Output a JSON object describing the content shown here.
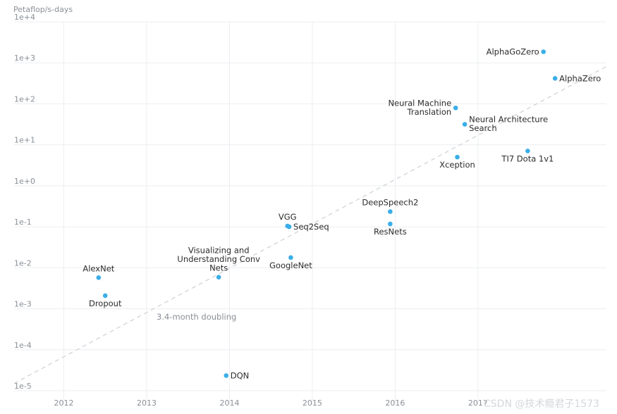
{
  "chart_data": {
    "type": "scatter",
    "ylabel": "Petaflop/s-days",
    "yscale": "log",
    "ylim_exp": [
      -5,
      4
    ],
    "xlim": [
      2011.4,
      2018.55
    ],
    "grid": true,
    "y_tick_labels": [
      "1e-5",
      "1e-4",
      "1e-3",
      "1e-2",
      "1e-1",
      "1e+0",
      "1e+1",
      "1e+2",
      "1e+3",
      "1e+4"
    ],
    "x_ticks": [
      2012,
      2013,
      2014,
      2015,
      2016,
      2017
    ],
    "x_tick_labels": [
      "2012",
      "2013",
      "2014",
      "2015",
      "2016",
      "2017"
    ],
    "points": [
      {
        "name": "AlexNet",
        "x": 2012.42,
        "log10y": -2.24,
        "label_lines": [
          "AlexNet"
        ],
        "label_pos": "above"
      },
      {
        "name": "Dropout",
        "x": 2012.5,
        "log10y": -2.68,
        "label_lines": [
          "Dropout"
        ],
        "label_pos": "below"
      },
      {
        "name": "DQN",
        "x": 2013.96,
        "log10y": -4.63,
        "label_lines": [
          "DQN"
        ],
        "label_pos": "right"
      },
      {
        "name": "Visualizing and Understanding Conv Nets",
        "x": 2013.87,
        "log10y": -2.23,
        "label_lines": [
          "Visualizing and",
          "Understanding Conv",
          "Nets"
        ],
        "label_pos": "above"
      },
      {
        "name": "VGG",
        "x": 2014.7,
        "log10y": -0.98,
        "label_lines": [
          "VGG"
        ],
        "label_pos": "above"
      },
      {
        "name": "Seq2Seq",
        "x": 2014.72,
        "log10y": -1.0,
        "label_lines": [
          "Seq2Seq"
        ],
        "label_pos": "right"
      },
      {
        "name": "GoogleNet",
        "x": 2014.74,
        "log10y": -1.75,
        "label_lines": [
          "GoogleNet"
        ],
        "label_pos": "below"
      },
      {
        "name": "DeepSpeech2",
        "x": 2015.94,
        "log10y": -0.63,
        "label_lines": [
          "DeepSpeech2"
        ],
        "label_pos": "above"
      },
      {
        "name": "ResNets",
        "x": 2015.94,
        "log10y": -0.93,
        "label_lines": [
          "ResNets"
        ],
        "label_pos": "below"
      },
      {
        "name": "Xception",
        "x": 2016.75,
        "log10y": 0.7,
        "label_lines": [
          "Xception"
        ],
        "label_pos": "below"
      },
      {
        "name": "Neural Machine Translation",
        "x": 2016.73,
        "log10y": 1.9,
        "label_lines": [
          "Neural Machine",
          "Translation"
        ],
        "label_pos": "left"
      },
      {
        "name": "Neural Architecture Search",
        "x": 2016.84,
        "log10y": 1.5,
        "label_lines": [
          "Neural Architecture",
          "Search"
        ],
        "label_pos": "right"
      },
      {
        "name": "TI7 Dota 1v1",
        "x": 2017.6,
        "log10y": 0.85,
        "label_lines": [
          "TI7 Dota 1v1"
        ],
        "label_pos": "below"
      },
      {
        "name": "AlphaGoZero",
        "x": 2017.79,
        "log10y": 3.27,
        "label_lines": [
          "AlphaGoZero"
        ],
        "label_pos": "left"
      },
      {
        "name": "AlphaZero",
        "x": 2017.93,
        "log10y": 2.62,
        "label_lines": [
          "AlphaZero"
        ],
        "label_pos": "right"
      }
    ],
    "trendline": {
      "label": "3.4-month doubling",
      "start": {
        "x": 2011.4,
        "log10y": -4.82
      },
      "end": {
        "x": 2018.55,
        "log10y": 2.91
      }
    }
  },
  "watermark": "CSDN @技术瘾君子1573"
}
